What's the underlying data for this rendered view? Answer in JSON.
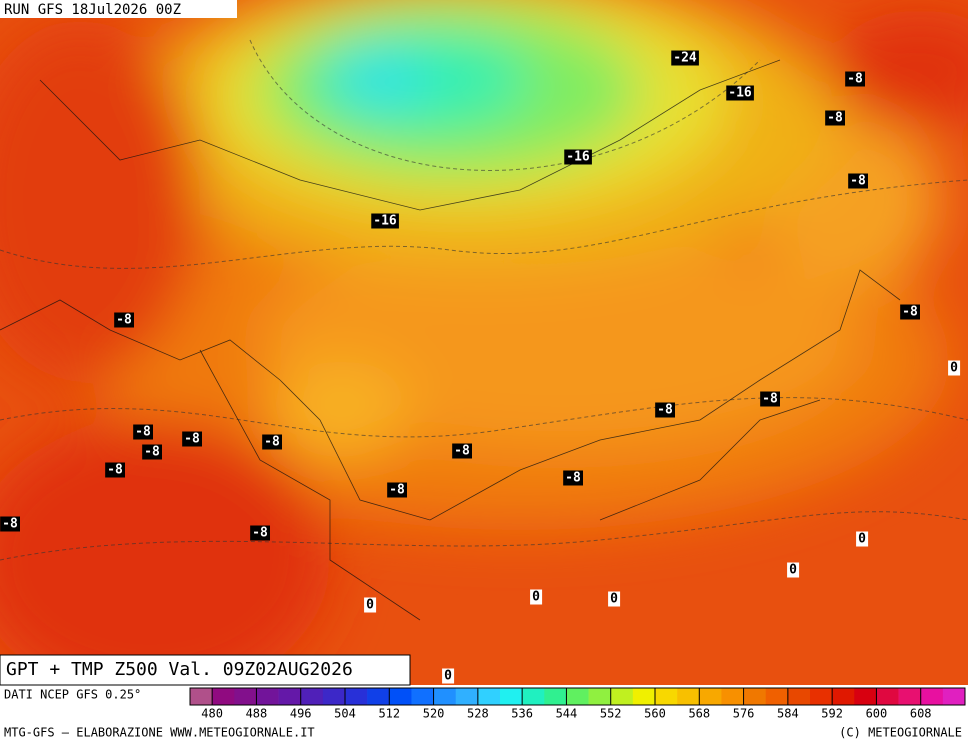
{
  "header": {
    "run": "RUN GFS 18Jul2026 00Z"
  },
  "map": {
    "title": "GPT + TMP Z500 Val. 09Z02AUG2026",
    "contour_labels": [
      -24,
      -16,
      -8,
      -8,
      -16,
      -8,
      -16,
      -8,
      -8,
      0,
      -8,
      -8,
      -8,
      -8,
      -8,
      -8,
      -8,
      -8,
      -8,
      -8,
      -8,
      -8,
      0,
      0,
      0,
      0,
      0,
      0
    ]
  },
  "legend": {
    "source": "DATI NCEP GFS 0.25°",
    "range": [
      476,
      616
    ],
    "colors": [
      "#b0508a",
      "#900a80",
      "#82108c",
      "#72149a",
      "#6418a8",
      "#5020b8",
      "#3c28c8",
      "#2830d8",
      "#1040e8",
      "#0050f8",
      "#1070ff",
      "#2090ff",
      "#30b0ff",
      "#30d0ff",
      "#20f0f0",
      "#20f0c0",
      "#30f090",
      "#60f060",
      "#90f040",
      "#c0f020",
      "#f0f000",
      "#f8d800",
      "#f8c000",
      "#f8a800",
      "#f89000",
      "#f07800",
      "#f06000",
      "#e84800",
      "#e83000",
      "#e01800",
      "#d80010",
      "#e00840",
      "#e81070",
      "#e810a0",
      "#e020c0"
    ],
    "ticks": [
      480,
      488,
      496,
      504,
      512,
      520,
      528,
      536,
      544,
      552,
      560,
      568,
      576,
      584,
      592,
      600,
      608
    ]
  },
  "footer": {
    "left": "MTG-GFS — ELABORAZIONE WWW.METEOGIORNALE.IT",
    "right": "(C) METEOGIORNALE"
  }
}
